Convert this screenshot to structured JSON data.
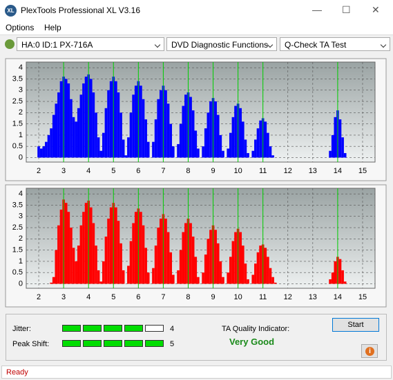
{
  "window": {
    "title": "PlexTools Professional XL V3.16",
    "menu": [
      "Options",
      "Help"
    ],
    "drive": "HA:0 ID:1  PX-716A",
    "function": "DVD Diagnostic Functions",
    "test": "Q-Check TA Test",
    "status": "Ready"
  },
  "results": {
    "jitter_label": "Jitter:",
    "jitter": 4,
    "peak_label": "Peak Shift:",
    "peak": 5,
    "meter_segments": 5,
    "meter_color": "#00dd00",
    "quality_label": "TA Quality Indicator:",
    "quality": "Very Good",
    "start": "Start"
  },
  "chart_data": [
    {
      "type": "bar",
      "color": "#0000ff",
      "marker_color": "#00d000",
      "grid": true,
      "xlim": [
        1.5,
        15.5
      ],
      "xticks": [
        2,
        3,
        4,
        5,
        6,
        7,
        8,
        9,
        10,
        11,
        12,
        13,
        14,
        15
      ],
      "ylim": [
        -0.2,
        4.25
      ],
      "yticks": [
        0,
        0.5,
        1,
        1.5,
        2,
        2.5,
        3,
        3.5,
        4
      ],
      "markers": [
        3,
        4,
        5,
        6,
        7,
        8,
        9,
        10,
        11,
        14
      ],
      "x": [
        2,
        2.1,
        2.2,
        2.3,
        2.4,
        2.5,
        2.6,
        2.7,
        2.8,
        2.9,
        3,
        3.1,
        3.2,
        3.3,
        3.4,
        3.5,
        3.6,
        3.7,
        3.8,
        3.9,
        4,
        4.1,
        4.2,
        4.3,
        4.4,
        4.5,
        4.6,
        4.7,
        4.8,
        4.9,
        5,
        5.1,
        5.2,
        5.3,
        5.4,
        5.5,
        5.6,
        5.7,
        5.8,
        5.9,
        6,
        6.1,
        6.2,
        6.3,
        6.4,
        6.5,
        6.6,
        6.7,
        6.8,
        6.9,
        7,
        7.1,
        7.2,
        7.3,
        7.4,
        7.5,
        7.6,
        7.7,
        7.8,
        7.9,
        8,
        8.1,
        8.2,
        8.3,
        8.4,
        8.5,
        8.6,
        8.7,
        8.8,
        8.9,
        9,
        9.1,
        9.2,
        9.3,
        9.4,
        9.5,
        9.6,
        9.7,
        9.8,
        9.9,
        10,
        10.1,
        10.2,
        10.3,
        10.4,
        10.5,
        10.6,
        10.7,
        10.8,
        10.9,
        11,
        11.1,
        11.2,
        11.3,
        11.4,
        11.5,
        13.7,
        13.8,
        13.9,
        14,
        14.1,
        14.2,
        14.3
      ],
      "values": [
        0.5,
        0.4,
        0.5,
        0.7,
        1.0,
        1.3,
        1.9,
        2.4,
        2.9,
        3.4,
        3.6,
        3.5,
        3.3,
        2.6,
        1.8,
        1.6,
        2.2,
        2.8,
        3.3,
        3.6,
        3.7,
        3.5,
        2.9,
        2.0,
        0.9,
        0.3,
        1.1,
        2.2,
        3.0,
        3.4,
        3.6,
        3.4,
        2.9,
        2.0,
        0.8,
        0.1,
        0.9,
        2.0,
        2.8,
        3.2,
        3.4,
        3.2,
        2.6,
        1.7,
        0.7,
        0.0,
        0.7,
        1.7,
        2.6,
        3.0,
        3.2,
        3.0,
        2.4,
        1.5,
        0.5,
        0.0,
        0.6,
        1.5,
        2.3,
        2.8,
        2.9,
        2.7,
        2.1,
        1.2,
        0.4,
        0.0,
        0.5,
        1.3,
        2.0,
        2.5,
        2.65,
        2.5,
        1.9,
        1.0,
        0.3,
        0.0,
        0.4,
        1.1,
        1.8,
        2.3,
        2.4,
        2.2,
        1.6,
        0.8,
        0.2,
        0.0,
        0.3,
        0.8,
        1.3,
        1.65,
        1.75,
        1.6,
        1.1,
        0.5,
        0.1,
        0.0,
        0.3,
        1.0,
        1.8,
        2.1,
        1.7,
        0.9,
        0.2
      ]
    },
    {
      "type": "bar",
      "color": "#ff0000",
      "marker_color": "#00d000",
      "grid": true,
      "xlim": [
        1.5,
        15.5
      ],
      "xticks": [
        2,
        3,
        4,
        5,
        6,
        7,
        8,
        9,
        10,
        11,
        12,
        13,
        14,
        15
      ],
      "ylim": [
        -0.2,
        4.25
      ],
      "yticks": [
        0,
        0.5,
        1,
        1.5,
        2,
        2.5,
        3,
        3.5,
        4
      ],
      "markers": [
        3,
        4,
        5,
        6,
        7,
        8,
        9,
        10,
        11,
        14
      ],
      "x": [
        2,
        2.1,
        2.2,
        2.3,
        2.4,
        2.5,
        2.6,
        2.7,
        2.8,
        2.9,
        3,
        3.1,
        3.2,
        3.3,
        3.4,
        3.5,
        3.6,
        3.7,
        3.8,
        3.9,
        4,
        4.1,
        4.2,
        4.3,
        4.4,
        4.5,
        4.6,
        4.7,
        4.8,
        4.9,
        5,
        5.1,
        5.2,
        5.3,
        5.4,
        5.5,
        5.6,
        5.7,
        5.8,
        5.9,
        6,
        6.1,
        6.2,
        6.3,
        6.4,
        6.5,
        6.6,
        6.7,
        6.8,
        6.9,
        7,
        7.1,
        7.2,
        7.3,
        7.4,
        7.5,
        7.6,
        7.7,
        7.8,
        7.9,
        8,
        8.1,
        8.2,
        8.3,
        8.4,
        8.5,
        8.6,
        8.7,
        8.8,
        8.9,
        9,
        9.1,
        9.2,
        9.3,
        9.4,
        9.5,
        9.6,
        9.7,
        9.8,
        9.9,
        10,
        10.1,
        10.2,
        10.3,
        10.4,
        10.5,
        10.6,
        10.7,
        10.8,
        10.9,
        11,
        11.1,
        11.2,
        11.3,
        11.4,
        11.5,
        13.7,
        13.8,
        13.9,
        14,
        14.1,
        14.2,
        14.3
      ],
      "values": [
        0,
        0,
        0,
        0,
        0,
        0.05,
        0.3,
        1.5,
        2.6,
        3.3,
        3.75,
        3.6,
        3.2,
        2.5,
        1.6,
        1.0,
        1.7,
        2.6,
        3.2,
        3.6,
        3.7,
        3.4,
        2.7,
        1.7,
        0.6,
        0.1,
        1.0,
        2.1,
        2.9,
        3.4,
        3.6,
        3.4,
        2.8,
        1.8,
        0.6,
        0.0,
        0.8,
        1.9,
        2.7,
        3.2,
        3.35,
        3.2,
        2.6,
        1.6,
        0.5,
        0.0,
        0.7,
        1.7,
        2.5,
        2.9,
        3.1,
        2.9,
        2.3,
        1.4,
        0.4,
        0.0,
        0.6,
        1.5,
        2.3,
        2.7,
        2.9,
        2.7,
        2.1,
        1.2,
        0.3,
        0.0,
        0.5,
        1.3,
        2.0,
        2.4,
        2.6,
        2.4,
        1.8,
        1.0,
        0.3,
        0.0,
        0.5,
        1.2,
        1.9,
        2.3,
        2.45,
        2.3,
        1.7,
        0.9,
        0.2,
        0.0,
        0.4,
        0.9,
        1.4,
        1.7,
        1.75,
        1.6,
        1.2,
        0.7,
        0.3,
        0.05,
        0.2,
        0.5,
        1.0,
        1.2,
        1.1,
        0.6,
        0.1
      ]
    }
  ]
}
